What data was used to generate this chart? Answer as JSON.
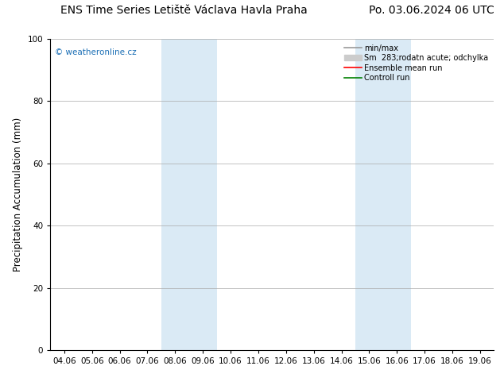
{
  "title": "ENS Time Series Letiště Václava Havla Praha",
  "title_right": "Po. 03.06.2024 06 UTC",
  "ylabel": "Precipitation Accumulation (mm)",
  "watermark": "© weatheronline.cz",
  "xlim_dates": [
    "04.06",
    "05.06",
    "06.06",
    "07.06",
    "08.06",
    "09.06",
    "10.06",
    "11.06",
    "12.06",
    "13.06",
    "14.06",
    "15.06",
    "16.06",
    "17.06",
    "18.06",
    "19.06"
  ],
  "ylim": [
    0,
    100
  ],
  "yticks": [
    0,
    20,
    40,
    60,
    80,
    100
  ],
  "shaded_regions": [
    {
      "xstart": 3.5,
      "xend": 4.5
    },
    {
      "xstart": 4.5,
      "xend": 5.5
    },
    {
      "xstart": 10.5,
      "xend": 11.5
    },
    {
      "xstart": 11.5,
      "xend": 12.5
    }
  ],
  "shaded_color": "#daeaf5",
  "shaded_alpha": 1.0,
  "legend_entries": [
    {
      "label": "min/max",
      "color": "#999999",
      "type": "line",
      "linewidth": 1.2
    },
    {
      "label": "Sm  283;rodatn acute; odchylka",
      "color": "#cccccc",
      "type": "patch"
    },
    {
      "label": "Ensemble mean run",
      "color": "red",
      "type": "line",
      "linewidth": 1.2
    },
    {
      "label": "Controll run",
      "color": "green",
      "type": "line",
      "linewidth": 1.2
    }
  ],
  "grid_color": "#aaaaaa",
  "bg_color": "#ffffff",
  "watermark_color": "#1a6eb5",
  "title_fontsize": 10,
  "tick_fontsize": 7.5,
  "ylabel_fontsize": 8.5
}
